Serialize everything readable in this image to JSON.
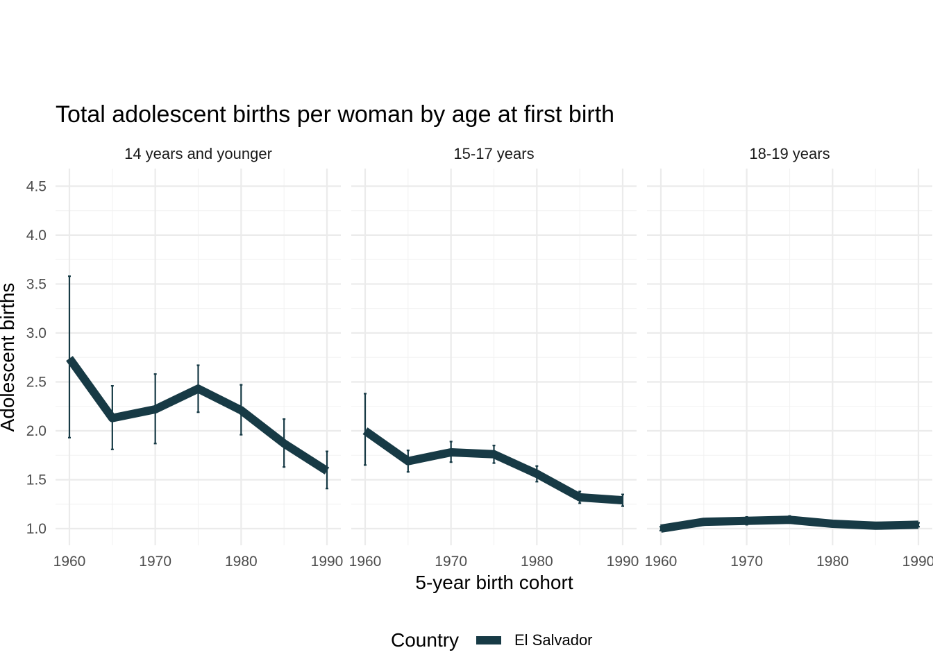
{
  "chart_data": {
    "type": "line",
    "title": "Total adolescent births per woman by age at first birth",
    "xlabel": "5-year birth cohort",
    "ylabel": "Adolescent births",
    "xlim": [
      1960,
      1990
    ],
    "ylim": [
      0.83,
      4.68
    ],
    "x_ticks": [
      1960,
      1970,
      1980,
      1990
    ],
    "y_ticks": [
      1.0,
      1.5,
      2.0,
      2.5,
      3.0,
      3.5,
      4.0,
      4.5
    ],
    "x_tick_labels": [
      "1960",
      "1970",
      "1980",
      "1990"
    ],
    "y_tick_labels": [
      "1.0",
      "1.5",
      "2.0",
      "2.5",
      "3.0",
      "3.5",
      "4.0",
      "4.5"
    ],
    "legend": {
      "title": "Country",
      "position": "bottom",
      "entries": [
        "El Salvador"
      ]
    },
    "series_color": "#173a45",
    "x": [
      1960,
      1965,
      1970,
      1975,
      1980,
      1985,
      1990
    ],
    "panels": [
      {
        "label": "14 years and younger",
        "values": [
          2.74,
          2.13,
          2.22,
          2.43,
          2.21,
          1.87,
          1.59
        ],
        "lower": [
          1.93,
          1.81,
          1.87,
          2.19,
          1.96,
          1.63,
          1.41
        ],
        "upper": [
          3.58,
          2.46,
          2.58,
          2.67,
          2.47,
          2.12,
          1.79
        ]
      },
      {
        "label": "15-17 years",
        "values": [
          2.0,
          1.69,
          1.78,
          1.76,
          1.56,
          1.32,
          1.29
        ],
        "lower": [
          1.65,
          1.58,
          1.68,
          1.67,
          1.48,
          1.26,
          1.23
        ],
        "upper": [
          2.38,
          1.8,
          1.89,
          1.85,
          1.64,
          1.38,
          1.35
        ]
      },
      {
        "label": "18-19 years",
        "values": [
          1.0,
          1.07,
          1.08,
          1.09,
          1.05,
          1.03,
          1.04
        ],
        "lower": [
          0.98,
          1.04,
          1.04,
          1.06,
          1.03,
          1.01,
          1.02
        ],
        "upper": [
          1.02,
          1.1,
          1.12,
          1.13,
          1.07,
          1.05,
          1.06
        ]
      }
    ]
  }
}
